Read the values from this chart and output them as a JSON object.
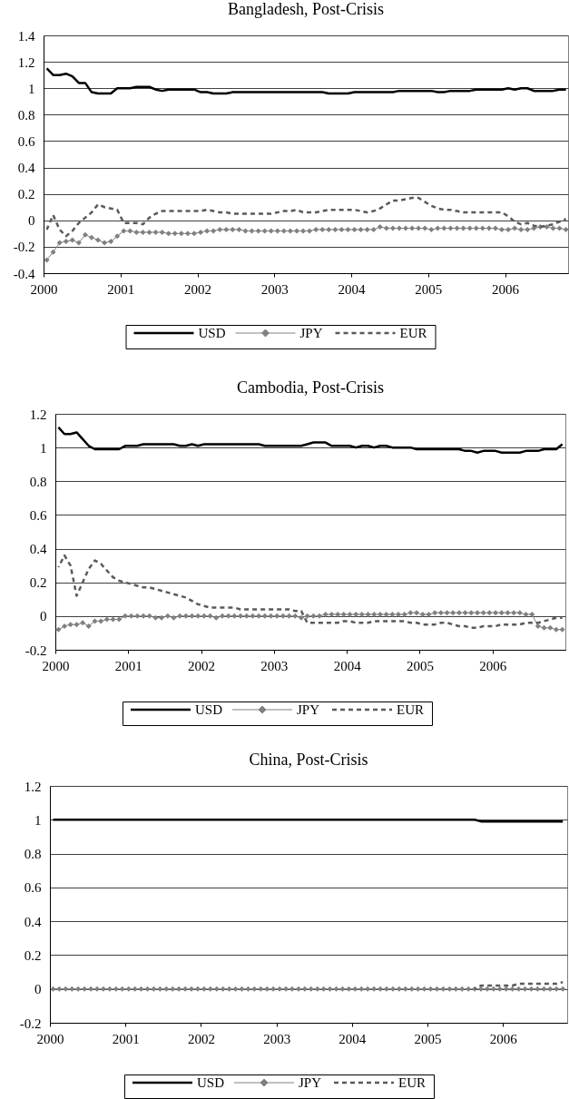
{
  "chart_data": [
    {
      "type": "line",
      "title": "Bangladesh, Post-Crisis",
      "grid": "y",
      "legend": "bottom",
      "xlim": [
        2000,
        2006.82
      ],
      "xticks": [
        2000,
        2001,
        2002,
        2003,
        2004,
        2005,
        2006
      ],
      "ylim": [
        -0.4,
        1.4
      ],
      "yticks": [
        -0.4,
        -0.2,
        0,
        0.2,
        0.4,
        0.6,
        0.8,
        1,
        1.2,
        1.4
      ],
      "x": [
        2000.042,
        2000.125,
        2000.208,
        2000.292,
        2000.375,
        2000.458,
        2000.542,
        2000.625,
        2000.708,
        2000.792,
        2000.875,
        2000.958,
        2001.042,
        2001.125,
        2001.208,
        2001.292,
        2001.375,
        2001.458,
        2001.542,
        2001.625,
        2001.708,
        2001.792,
        2001.875,
        2001.958,
        2002.042,
        2002.125,
        2002.208,
        2002.292,
        2002.375,
        2002.458,
        2002.542,
        2002.625,
        2002.708,
        2002.792,
        2002.875,
        2002.958,
        2003.042,
        2003.125,
        2003.208,
        2003.292,
        2003.375,
        2003.458,
        2003.542,
        2003.625,
        2003.708,
        2003.792,
        2003.875,
        2003.958,
        2004.042,
        2004.125,
        2004.208,
        2004.292,
        2004.375,
        2004.458,
        2004.542,
        2004.625,
        2004.708,
        2004.792,
        2004.875,
        2004.958,
        2005.042,
        2005.125,
        2005.208,
        2005.292,
        2005.375,
        2005.458,
        2005.542,
        2005.625,
        2005.708,
        2005.792,
        2005.875,
        2005.958,
        2006.042,
        2006.125,
        2006.208,
        2006.292,
        2006.375,
        2006.458,
        2006.542,
        2006.625,
        2006.708,
        2006.792
      ],
      "series": [
        {
          "name": "USD",
          "color": "#000000",
          "line_style": "solid",
          "values": [
            1.15,
            1.1,
            1.1,
            1.11,
            1.09,
            1.04,
            1.04,
            0.97,
            0.96,
            0.96,
            0.96,
            1.0,
            1.0,
            1.0,
            1.01,
            1.01,
            1.01,
            0.99,
            0.98,
            0.99,
            0.99,
            0.99,
            0.99,
            0.99,
            0.97,
            0.97,
            0.96,
            0.96,
            0.96,
            0.97,
            0.97,
            0.97,
            0.97,
            0.97,
            0.97,
            0.97,
            0.97,
            0.97,
            0.97,
            0.97,
            0.97,
            0.97,
            0.97,
            0.97,
            0.96,
            0.96,
            0.96,
            0.96,
            0.97,
            0.97,
            0.97,
            0.97,
            0.97,
            0.97,
            0.97,
            0.98,
            0.98,
            0.98,
            0.98,
            0.98,
            0.98,
            0.97,
            0.97,
            0.98,
            0.98,
            0.98,
            0.98,
            0.99,
            0.99,
            0.99,
            0.99,
            0.99,
            1.0,
            0.99,
            1.0,
            1.0,
            0.98,
            0.98,
            0.98,
            0.98,
            0.99,
            0.99
          ]
        },
        {
          "name": "JPY",
          "color": "#808080",
          "line_style": "solid",
          "marker": "diamond",
          "values": [
            -0.3,
            -0.24,
            -0.17,
            -0.16,
            -0.15,
            -0.17,
            -0.11,
            -0.13,
            -0.15,
            -0.17,
            -0.16,
            -0.12,
            -0.08,
            -0.08,
            -0.09,
            -0.09,
            -0.09,
            -0.09,
            -0.09,
            -0.1,
            -0.1,
            -0.1,
            -0.1,
            -0.1,
            -0.09,
            -0.08,
            -0.08,
            -0.07,
            -0.07,
            -0.07,
            -0.07,
            -0.08,
            -0.08,
            -0.08,
            -0.08,
            -0.08,
            -0.08,
            -0.08,
            -0.08,
            -0.08,
            -0.08,
            -0.08,
            -0.07,
            -0.07,
            -0.07,
            -0.07,
            -0.07,
            -0.07,
            -0.07,
            -0.07,
            -0.07,
            -0.07,
            -0.05,
            -0.06,
            -0.06,
            -0.06,
            -0.06,
            -0.06,
            -0.06,
            -0.06,
            -0.07,
            -0.06,
            -0.06,
            -0.06,
            -0.06,
            -0.06,
            -0.06,
            -0.06,
            -0.06,
            -0.06,
            -0.06,
            -0.07,
            -0.07,
            -0.06,
            -0.07,
            -0.07,
            -0.06,
            -0.05,
            -0.05,
            -0.06,
            -0.06,
            -0.07
          ]
        },
        {
          "name": "EUR",
          "color": "#5a5a5a",
          "line_style": "dashed",
          "values": [
            -0.07,
            0.04,
            -0.07,
            -0.12,
            -0.08,
            -0.02,
            0.02,
            0.06,
            0.12,
            0.1,
            0.09,
            0.08,
            -0.02,
            -0.02,
            -0.02,
            -0.03,
            0.02,
            0.05,
            0.07,
            0.07,
            0.07,
            0.07,
            0.07,
            0.07,
            0.07,
            0.08,
            0.07,
            0.06,
            0.06,
            0.05,
            0.05,
            0.05,
            0.05,
            0.05,
            0.05,
            0.05,
            0.06,
            0.07,
            0.07,
            0.08,
            0.06,
            0.06,
            0.06,
            0.07,
            0.08,
            0.08,
            0.08,
            0.08,
            0.08,
            0.07,
            0.06,
            0.07,
            0.09,
            0.12,
            0.15,
            0.15,
            0.16,
            0.17,
            0.17,
            0.14,
            0.11,
            0.09,
            0.08,
            0.08,
            0.07,
            0.06,
            0.06,
            0.06,
            0.06,
            0.06,
            0.06,
            0.06,
            0.03,
            -0.01,
            -0.03,
            -0.02,
            -0.04,
            -0.05,
            -0.04,
            -0.03,
            -0.01,
            0.01
          ]
        }
      ]
    },
    {
      "type": "line",
      "title": "Cambodia, Post-Crisis",
      "grid": "y",
      "legend": "bottom",
      "xlim": [
        2000,
        2007
      ],
      "xticks": [
        2000,
        2001,
        2002,
        2003,
        2004,
        2005,
        2006
      ],
      "ylim": [
        -0.2,
        1.2
      ],
      "yticks": [
        -0.2,
        0,
        0.2,
        0.4,
        0.6,
        0.8,
        1,
        1.2
      ],
      "x": [
        2000.042,
        2000.125,
        2000.208,
        2000.292,
        2000.375,
        2000.458,
        2000.542,
        2000.625,
        2000.708,
        2000.792,
        2000.875,
        2000.958,
        2001.042,
        2001.125,
        2001.208,
        2001.292,
        2001.375,
        2001.458,
        2001.542,
        2001.625,
        2001.708,
        2001.792,
        2001.875,
        2001.958,
        2002.042,
        2002.125,
        2002.208,
        2002.292,
        2002.375,
        2002.458,
        2002.542,
        2002.625,
        2002.708,
        2002.792,
        2002.875,
        2002.958,
        2003.042,
        2003.125,
        2003.208,
        2003.292,
        2003.375,
        2003.458,
        2003.542,
        2003.625,
        2003.708,
        2003.792,
        2003.875,
        2003.958,
        2004.042,
        2004.125,
        2004.208,
        2004.292,
        2004.375,
        2004.458,
        2004.542,
        2004.625,
        2004.708,
        2004.792,
        2004.875,
        2004.958,
        2005.042,
        2005.125,
        2005.208,
        2005.292,
        2005.375,
        2005.458,
        2005.542,
        2005.625,
        2005.708,
        2005.792,
        2005.875,
        2005.958,
        2006.042,
        2006.125,
        2006.208,
        2006.292,
        2006.375,
        2006.458,
        2006.542,
        2006.625,
        2006.708,
        2006.792,
        2006.875,
        2006.958
      ],
      "series": [
        {
          "name": "USD",
          "color": "#000000",
          "line_style": "solid",
          "values": [
            1.12,
            1.08,
            1.08,
            1.09,
            1.05,
            1.01,
            0.99,
            0.99,
            0.99,
            0.99,
            0.99,
            1.01,
            1.01,
            1.01,
            1.02,
            1.02,
            1.02,
            1.02,
            1.02,
            1.02,
            1.01,
            1.01,
            1.02,
            1.01,
            1.02,
            1.02,
            1.02,
            1.02,
            1.02,
            1.02,
            1.02,
            1.02,
            1.02,
            1.02,
            1.01,
            1.01,
            1.01,
            1.01,
            1.01,
            1.01,
            1.01,
            1.02,
            1.03,
            1.03,
            1.03,
            1.01,
            1.01,
            1.01,
            1.01,
            1.0,
            1.01,
            1.01,
            1.0,
            1.01,
            1.01,
            1.0,
            1.0,
            1.0,
            1.0,
            0.99,
            0.99,
            0.99,
            0.99,
            0.99,
            0.99,
            0.99,
            0.99,
            0.98,
            0.98,
            0.97,
            0.98,
            0.98,
            0.98,
            0.97,
            0.97,
            0.97,
            0.97,
            0.98,
            0.98,
            0.98,
            0.99,
            0.99,
            0.99,
            1.02
          ]
        },
        {
          "name": "JPY",
          "color": "#808080",
          "line_style": "solid",
          "marker": "diamond",
          "values": [
            -0.08,
            -0.06,
            -0.05,
            -0.05,
            -0.04,
            -0.06,
            -0.03,
            -0.03,
            -0.02,
            -0.02,
            -0.02,
            0.0,
            0.0,
            0.0,
            0.0,
            0.0,
            -0.01,
            -0.01,
            0.0,
            -0.01,
            0.0,
            0.0,
            0.0,
            0.0,
            0.0,
            0.0,
            -0.01,
            0.0,
            0.0,
            0.0,
            0.0,
            0.0,
            0.0,
            0.0,
            0.0,
            0.0,
            0.0,
            0.0,
            0.0,
            0.0,
            -0.01,
            0.0,
            0.0,
            0.0,
            0.01,
            0.01,
            0.01,
            0.01,
            0.01,
            0.01,
            0.01,
            0.01,
            0.01,
            0.01,
            0.01,
            0.01,
            0.01,
            0.01,
            0.02,
            0.02,
            0.01,
            0.01,
            0.02,
            0.02,
            0.02,
            0.02,
            0.02,
            0.02,
            0.02,
            0.02,
            0.02,
            0.02,
            0.02,
            0.02,
            0.02,
            0.02,
            0.02,
            0.01,
            0.01,
            -0.06,
            -0.07,
            -0.07,
            -0.08,
            -0.08
          ]
        },
        {
          "name": "EUR",
          "color": "#5a5a5a",
          "line_style": "dashed",
          "values": [
            0.29,
            0.36,
            0.3,
            0.12,
            0.2,
            0.28,
            0.33,
            0.31,
            0.27,
            0.23,
            0.21,
            0.2,
            0.19,
            0.18,
            0.17,
            0.17,
            0.16,
            0.15,
            0.14,
            0.13,
            0.12,
            0.11,
            0.09,
            0.07,
            0.06,
            0.05,
            0.05,
            0.05,
            0.05,
            0.05,
            0.04,
            0.04,
            0.04,
            0.04,
            0.04,
            0.04,
            0.04,
            0.04,
            0.04,
            0.03,
            0.03,
            -0.04,
            -0.04,
            -0.04,
            -0.04,
            -0.04,
            -0.04,
            -0.03,
            -0.03,
            -0.04,
            -0.04,
            -0.04,
            -0.03,
            -0.03,
            -0.03,
            -0.03,
            -0.03,
            -0.03,
            -0.04,
            -0.04,
            -0.05,
            -0.05,
            -0.05,
            -0.04,
            -0.04,
            -0.05,
            -0.06,
            -0.06,
            -0.07,
            -0.07,
            -0.06,
            -0.06,
            -0.06,
            -0.05,
            -0.05,
            -0.05,
            -0.05,
            -0.04,
            -0.04,
            -0.04,
            -0.03,
            -0.02,
            -0.01,
            -0.01
          ]
        }
      ]
    },
    {
      "type": "line",
      "title": "China, Post-Crisis",
      "grid": "y",
      "legend": "bottom",
      "xlim": [
        2000,
        2006.85
      ],
      "xticks": [
        2000,
        2001,
        2002,
        2003,
        2004,
        2005,
        2006
      ],
      "ylim": [
        -0.2,
        1.2
      ],
      "yticks": [
        -0.2,
        0,
        0.2,
        0.4,
        0.6,
        0.8,
        1,
        1.2
      ],
      "x": [
        2000.042,
        2000.125,
        2000.208,
        2000.292,
        2000.375,
        2000.458,
        2000.542,
        2000.625,
        2000.708,
        2000.792,
        2000.875,
        2000.958,
        2001.042,
        2001.125,
        2001.208,
        2001.292,
        2001.375,
        2001.458,
        2001.542,
        2001.625,
        2001.708,
        2001.792,
        2001.875,
        2001.958,
        2002.042,
        2002.125,
        2002.208,
        2002.292,
        2002.375,
        2002.458,
        2002.542,
        2002.625,
        2002.708,
        2002.792,
        2002.875,
        2002.958,
        2003.042,
        2003.125,
        2003.208,
        2003.292,
        2003.375,
        2003.458,
        2003.542,
        2003.625,
        2003.708,
        2003.792,
        2003.875,
        2003.958,
        2004.042,
        2004.125,
        2004.208,
        2004.292,
        2004.375,
        2004.458,
        2004.542,
        2004.625,
        2004.708,
        2004.792,
        2004.875,
        2004.958,
        2005.042,
        2005.125,
        2005.208,
        2005.292,
        2005.375,
        2005.458,
        2005.542,
        2005.625,
        2005.708,
        2005.792,
        2005.875,
        2005.958,
        2006.042,
        2006.125,
        2006.208,
        2006.292,
        2006.375,
        2006.458,
        2006.542,
        2006.625,
        2006.708,
        2006.792
      ],
      "series": [
        {
          "name": "USD",
          "color": "#000000",
          "line_style": "solid",
          "values": [
            1.0,
            1.0,
            1.0,
            1.0,
            1.0,
            1.0,
            1.0,
            1.0,
            1.0,
            1.0,
            1.0,
            1.0,
            1.0,
            1.0,
            1.0,
            1.0,
            1.0,
            1.0,
            1.0,
            1.0,
            1.0,
            1.0,
            1.0,
            1.0,
            1.0,
            1.0,
            1.0,
            1.0,
            1.0,
            1.0,
            1.0,
            1.0,
            1.0,
            1.0,
            1.0,
            1.0,
            1.0,
            1.0,
            1.0,
            1.0,
            1.0,
            1.0,
            1.0,
            1.0,
            1.0,
            1.0,
            1.0,
            1.0,
            1.0,
            1.0,
            1.0,
            1.0,
            1.0,
            1.0,
            1.0,
            1.0,
            1.0,
            1.0,
            1.0,
            1.0,
            1.0,
            1.0,
            1.0,
            1.0,
            1.0,
            1.0,
            1.0,
            1.0,
            0.99,
            0.99,
            0.99,
            0.99,
            0.99,
            0.99,
            0.99,
            0.99,
            0.99,
            0.99,
            0.99,
            0.99,
            0.99,
            0.99
          ]
        },
        {
          "name": "JPY",
          "color": "#808080",
          "line_style": "solid",
          "marker": "diamond",
          "values": [
            0,
            0,
            0,
            0,
            0,
            0,
            0,
            0,
            0,
            0,
            0,
            0,
            0,
            0,
            0,
            0,
            0,
            0,
            0,
            0,
            0,
            0,
            0,
            0,
            0,
            0,
            0,
            0,
            0,
            0,
            0,
            0,
            0,
            0,
            0,
            0,
            0,
            0,
            0,
            0,
            0,
            0,
            0,
            0,
            0,
            0,
            0,
            0,
            0,
            0,
            0,
            0,
            0,
            0,
            0,
            0,
            0,
            0,
            0,
            0,
            0,
            0,
            0,
            0,
            0,
            0,
            0,
            0,
            0,
            0,
            0,
            0,
            0,
            0,
            0,
            0,
            0,
            0,
            0,
            0,
            0,
            0
          ]
        },
        {
          "name": "EUR",
          "color": "#5a5a5a",
          "line_style": "dashed",
          "values": [
            null,
            null,
            null,
            null,
            null,
            null,
            null,
            null,
            null,
            null,
            null,
            null,
            null,
            null,
            null,
            null,
            null,
            null,
            null,
            null,
            null,
            null,
            null,
            null,
            null,
            null,
            null,
            null,
            null,
            null,
            null,
            null,
            null,
            null,
            null,
            null,
            null,
            null,
            null,
            null,
            null,
            null,
            null,
            null,
            null,
            null,
            null,
            null,
            null,
            null,
            null,
            null,
            null,
            null,
            null,
            null,
            null,
            null,
            null,
            null,
            null,
            null,
            null,
            null,
            null,
            null,
            null,
            0.0,
            0.02,
            0.02,
            0.02,
            0.02,
            0.02,
            0.02,
            0.03,
            0.03,
            0.03,
            0.03,
            0.03,
            0.03,
            0.03,
            0.04
          ]
        }
      ]
    }
  ]
}
